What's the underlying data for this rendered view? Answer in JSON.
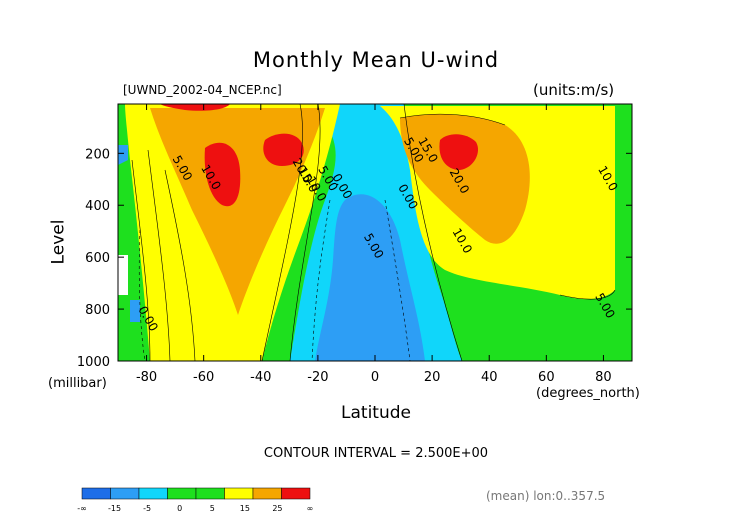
{
  "chart_data": {
    "type": "heatmap",
    "title": "Monthly Mean U-wind",
    "file_label": "[UWND_2002-04_NCEP.nc]",
    "units_label": "(units:m/s)",
    "xlabel": "Latitude",
    "x_unit_label": "(degrees_north)",
    "ylabel": "Level",
    "y_unit_label": "(millibar)",
    "x_ticks": [
      -80,
      -60,
      -40,
      -20,
      0,
      20,
      40,
      60,
      80
    ],
    "y_ticks": [
      200,
      400,
      600,
      800,
      1000
    ],
    "xlim": [
      -90,
      90
    ],
    "ylim": [
      1000,
      10
    ],
    "contour_interval_text": "CONTOUR INTERVAL = 2.500E+00",
    "mean_text": "(mean) lon:0..357.5",
    "contour_labels": [
      {
        "text": "5.00",
        "x": -71,
        "y": 220
      },
      {
        "text": "10.0",
        "x": -61,
        "y": 255
      },
      {
        "text": "20.0",
        "x": -29,
        "y": 230
      },
      {
        "text": "15.0",
        "x": -27,
        "y": 265
      },
      {
        "text": "10.0",
        "x": -24,
        "y": 300
      },
      {
        "text": "5.00",
        "x": -20,
        "y": 260
      },
      {
        "text": "0.00",
        "x": -15,
        "y": 290
      },
      {
        "text": "0.00",
        "x": -83,
        "y": 800
      },
      {
        "text": "5.00",
        "x": -4,
        "y": 520
      },
      {
        "text": "0.00",
        "x": 8,
        "y": 330
      },
      {
        "text": "5.00",
        "x": 10,
        "y": 150
      },
      {
        "text": "15.0",
        "x": 15,
        "y": 150
      },
      {
        "text": "20.0",
        "x": 26,
        "y": 270
      },
      {
        "text": "10.0",
        "x": 27,
        "y": 500
      },
      {
        "text": "10.0",
        "x": 78,
        "y": 260
      },
      {
        "text": "5.00",
        "x": 77,
        "y": 750
      }
    ],
    "colorbar": {
      "tick_labels": [
        "-∞",
        "-15",
        "-5",
        "0",
        "5",
        "15",
        "25",
        "∞"
      ],
      "colors": [
        "#1e6ee8",
        "#2d9ef5",
        "#10d6fa",
        "#1ee01e",
        "#1ee01e",
        "#ffff00",
        "#f5a600",
        "#ee1010"
      ]
    },
    "colors": {
      "deep_blue": "#1e6ee8",
      "blue": "#2d9ef5",
      "cyan": "#10d6fa",
      "green": "#1ee01e",
      "yellow": "#ffff00",
      "orange": "#f5a600",
      "red": "#ee1010"
    }
  }
}
